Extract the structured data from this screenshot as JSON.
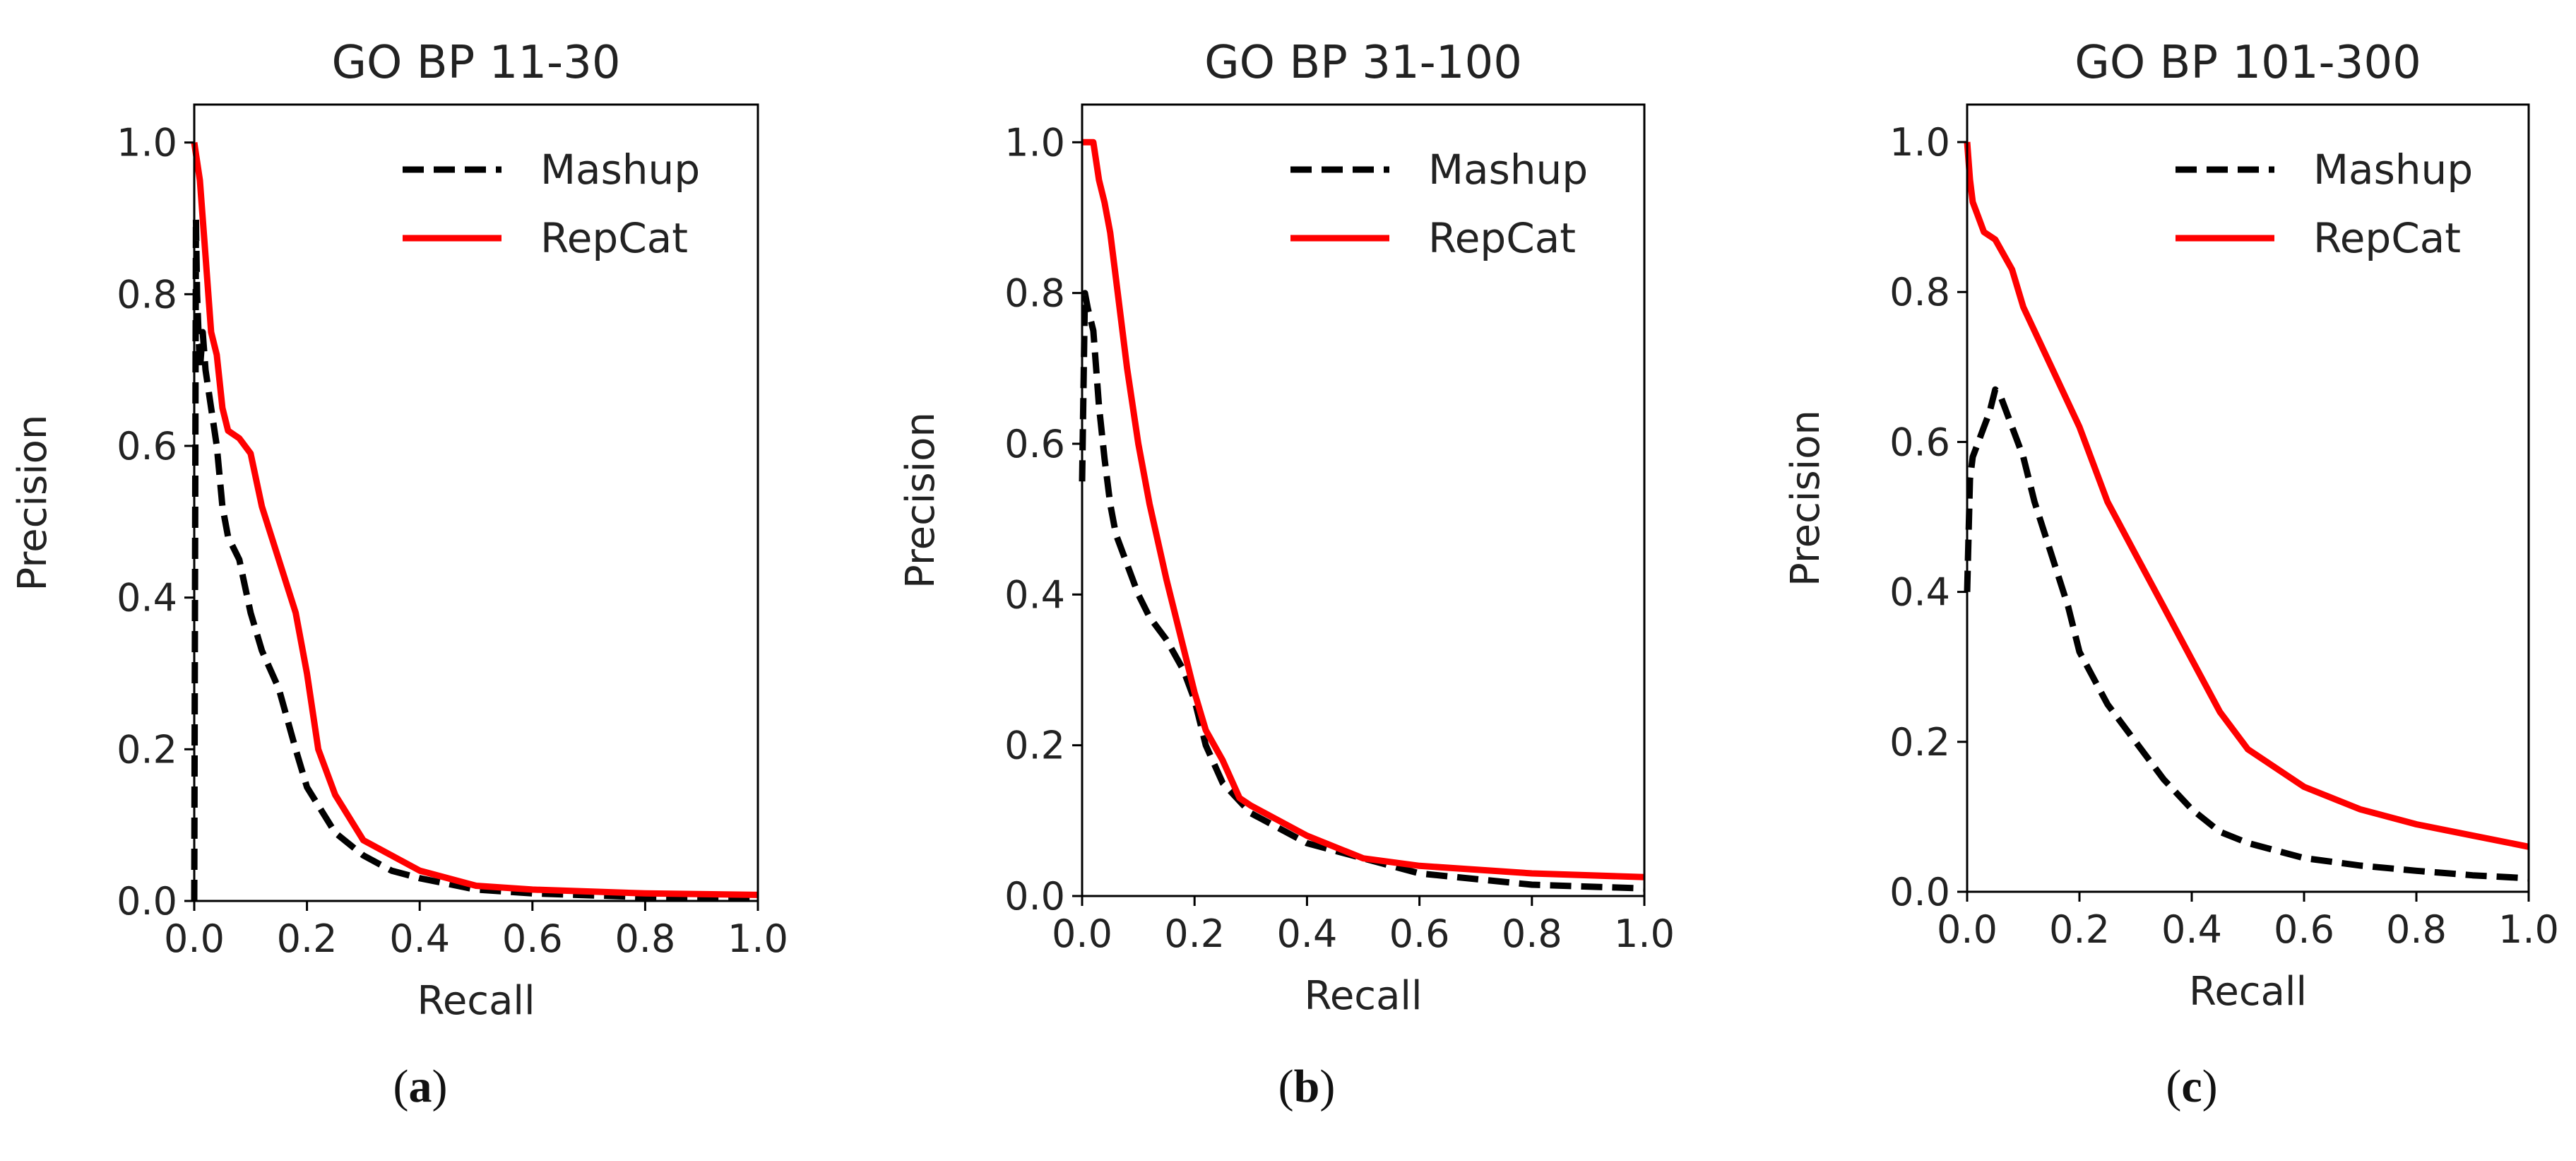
{
  "colors": {
    "mashup": "#000000",
    "repcat": "#ff0000"
  },
  "chart_data": [
    {
      "type": "line",
      "title": "GO BP 11-30",
      "xlabel": "Recall",
      "ylabel": "Precision",
      "xlim": [
        0,
        1
      ],
      "ylim": [
        0,
        1.05
      ],
      "xticks": [
        "0.0",
        "0.2",
        "0.4",
        "0.6",
        "0.8",
        "1.0"
      ],
      "yticks": [
        "0.0",
        "0.2",
        "0.4",
        "0.6",
        "0.8",
        "1.0"
      ],
      "legend": "top-right",
      "panel_label": "a",
      "series": [
        {
          "name": "Mashup",
          "style": "dashed",
          "x": [
            0,
            0.003,
            0.005,
            0.01,
            0.015,
            0.02,
            0.03,
            0.04,
            0.05,
            0.06,
            0.08,
            0.1,
            0.12,
            0.15,
            0.18,
            0.2,
            0.25,
            0.3,
            0.35,
            0.4,
            0.5,
            0.6,
            0.8,
            1.0
          ],
          "y": [
            0.0,
            0.9,
            0.8,
            0.7,
            0.75,
            0.7,
            0.65,
            0.6,
            0.52,
            0.48,
            0.45,
            0.38,
            0.33,
            0.28,
            0.2,
            0.15,
            0.09,
            0.06,
            0.04,
            0.03,
            0.015,
            0.01,
            0.005,
            0.003
          ]
        },
        {
          "name": "RepCat",
          "style": "solid",
          "x": [
            0,
            0.01,
            0.02,
            0.03,
            0.04,
            0.05,
            0.06,
            0.08,
            0.1,
            0.12,
            0.15,
            0.18,
            0.2,
            0.22,
            0.25,
            0.3,
            0.35,
            0.4,
            0.5,
            0.6,
            0.8,
            1.0
          ],
          "y": [
            1.0,
            0.95,
            0.85,
            0.75,
            0.72,
            0.65,
            0.62,
            0.61,
            0.59,
            0.52,
            0.45,
            0.38,
            0.3,
            0.2,
            0.14,
            0.08,
            0.06,
            0.04,
            0.02,
            0.015,
            0.01,
            0.008
          ]
        }
      ]
    },
    {
      "type": "line",
      "title": "GO BP 31-100",
      "xlabel": "Recall",
      "ylabel": "Precision",
      "xlim": [
        0,
        1
      ],
      "ylim": [
        0,
        1.05
      ],
      "xticks": [
        "0.0",
        "0.2",
        "0.4",
        "0.6",
        "0.8",
        "1.0"
      ],
      "yticks": [
        "0.0",
        "0.2",
        "0.4",
        "0.6",
        "0.8",
        "1.0"
      ],
      "legend": "top-right",
      "panel_label": "b",
      "series": [
        {
          "name": "Mashup",
          "style": "dashed",
          "x": [
            0,
            0.005,
            0.01,
            0.02,
            0.03,
            0.04,
            0.05,
            0.06,
            0.08,
            0.1,
            0.12,
            0.15,
            0.18,
            0.2,
            0.22,
            0.25,
            0.3,
            0.35,
            0.4,
            0.5,
            0.6,
            0.8,
            1.0
          ],
          "y": [
            0.55,
            0.8,
            0.78,
            0.75,
            0.65,
            0.58,
            0.52,
            0.48,
            0.44,
            0.4,
            0.37,
            0.34,
            0.3,
            0.26,
            0.2,
            0.15,
            0.11,
            0.09,
            0.07,
            0.05,
            0.03,
            0.015,
            0.01
          ]
        },
        {
          "name": "RepCat",
          "style": "solid",
          "x": [
            0,
            0.01,
            0.02,
            0.03,
            0.04,
            0.05,
            0.06,
            0.08,
            0.1,
            0.12,
            0.15,
            0.18,
            0.2,
            0.22,
            0.25,
            0.28,
            0.3,
            0.35,
            0.4,
            0.5,
            0.6,
            0.8,
            1.0
          ],
          "y": [
            1.0,
            1.0,
            1.0,
            0.95,
            0.92,
            0.88,
            0.82,
            0.7,
            0.6,
            0.52,
            0.42,
            0.33,
            0.27,
            0.22,
            0.18,
            0.13,
            0.12,
            0.1,
            0.08,
            0.05,
            0.04,
            0.03,
            0.025
          ]
        }
      ]
    },
    {
      "type": "line",
      "title": "GO BP 101-300",
      "xlabel": "Recall",
      "ylabel": "Precision",
      "xlim": [
        0,
        1
      ],
      "ylim": [
        0,
        1.05
      ],
      "xticks": [
        "0.0",
        "0.2",
        "0.4",
        "0.6",
        "0.8",
        "1.0"
      ],
      "yticks": [
        "0.0",
        "0.2",
        "0.4",
        "0.6",
        "0.8",
        "1.0"
      ],
      "legend": "top-right",
      "panel_label": "c",
      "series": [
        {
          "name": "Mashup",
          "style": "dashed",
          "x": [
            0,
            0.005,
            0.01,
            0.02,
            0.03,
            0.04,
            0.05,
            0.06,
            0.07,
            0.08,
            0.1,
            0.12,
            0.15,
            0.18,
            0.2,
            0.25,
            0.3,
            0.35,
            0.4,
            0.45,
            0.5,
            0.6,
            0.7,
            0.8,
            0.9,
            1.0
          ],
          "y": [
            0.4,
            0.55,
            0.58,
            0.6,
            0.62,
            0.64,
            0.67,
            0.66,
            0.64,
            0.62,
            0.58,
            0.52,
            0.45,
            0.38,
            0.32,
            0.25,
            0.2,
            0.15,
            0.11,
            0.08,
            0.065,
            0.045,
            0.035,
            0.028,
            0.022,
            0.018
          ]
        },
        {
          "name": "RepCat",
          "style": "solid",
          "x": [
            0,
            0.005,
            0.01,
            0.02,
            0.03,
            0.05,
            0.08,
            0.1,
            0.15,
            0.2,
            0.25,
            0.3,
            0.35,
            0.4,
            0.45,
            0.5,
            0.6,
            0.7,
            0.8,
            0.9,
            1.0
          ],
          "y": [
            1.0,
            0.95,
            0.92,
            0.9,
            0.88,
            0.87,
            0.83,
            0.78,
            0.7,
            0.62,
            0.52,
            0.45,
            0.38,
            0.31,
            0.24,
            0.19,
            0.14,
            0.11,
            0.09,
            0.075,
            0.06
          ]
        }
      ]
    }
  ]
}
